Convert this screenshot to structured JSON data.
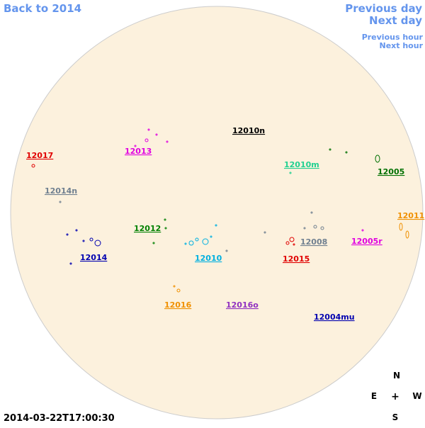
{
  "navigation": {
    "back": "Back to 2014",
    "previous_day": "Previous day",
    "next_day": "Next day",
    "previous_hour": "Previous hour",
    "next_hour": "Next hour"
  },
  "regions": [
    {
      "label": "12010n",
      "color": "#000000"
    },
    {
      "label": "12017",
      "color": "#e00000"
    },
    {
      "label": "12013",
      "color": "#e000e0"
    },
    {
      "label": "12010m",
      "color": "#20d090"
    },
    {
      "label": "12005",
      "color": "#007000"
    },
    {
      "label": "12014n",
      "color": "#708090"
    },
    {
      "label": "12011",
      "color": "#f09000"
    },
    {
      "label": "12012",
      "color": "#008000"
    },
    {
      "label": "12008",
      "color": "#708090"
    },
    {
      "label": "12005r",
      "color": "#e000e0"
    },
    {
      "label": "12014",
      "color": "#0000b0"
    },
    {
      "label": "12010",
      "color": "#00b0e0"
    },
    {
      "label": "12015",
      "color": "#e00000"
    },
    {
      "label": "12016",
      "color": "#f09000"
    },
    {
      "label": "12016o",
      "color": "#9030c0"
    },
    {
      "label": "12004mu",
      "color": "#0000b0"
    }
  ],
  "timestamp": "2014-03-22T17:00:30",
  "compass": {
    "north": "N",
    "east": "E",
    "center": "+",
    "west": "W",
    "south": "S"
  }
}
